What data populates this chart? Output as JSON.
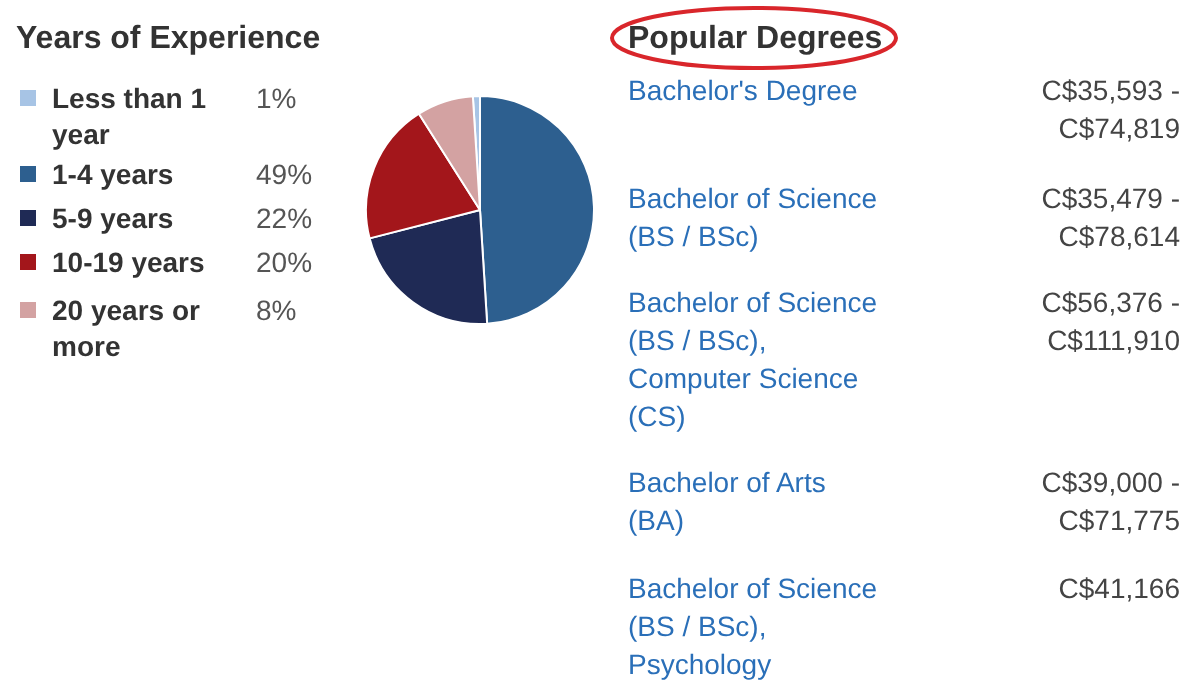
{
  "chart_data": [
    {
      "type": "pie",
      "title": "Years of Experience",
      "categories": [
        "Less than 1 year",
        "1-4 years",
        "5-9 years",
        "10-19 years",
        "20 years or more"
      ],
      "values": [
        1,
        49,
        22,
        20,
        8
      ],
      "colors": [
        "#a7c4e5",
        "#2d5f8f",
        "#1f2a55",
        "#a3161b",
        "#d3a2a2"
      ],
      "value_labels": [
        "1%",
        "49%",
        "22%",
        "20%",
        "8%"
      ],
      "legend": "left"
    },
    {
      "type": "other",
      "title": "Popular Degrees",
      "annotations": [
        "Bachelor's Degree",
        "C$35,593 - C$74,819",
        "Bachelor of Science (BS / BSc)",
        "C$35,479 - C$78,614",
        "Bachelor of Science (BS / BSc), Computer Science (CS)",
        "C$56,376 - C$111,910",
        "Bachelor of Arts (BA)",
        "C$39,000 - C$71,775",
        "Bachelor of Science (BS / BSc), Psychology",
        "C$41,166"
      ]
    }
  ]
}
